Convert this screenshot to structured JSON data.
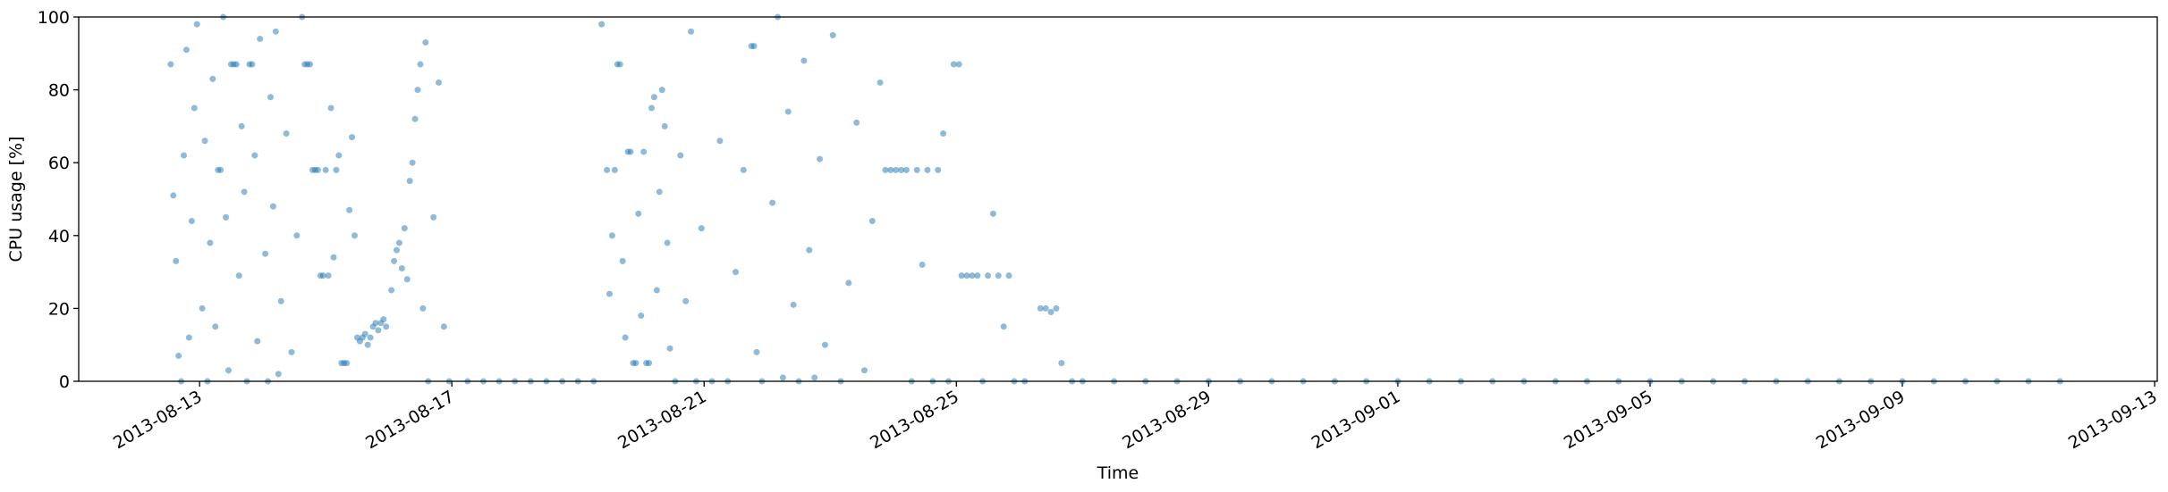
{
  "chart_data": {
    "type": "scatter",
    "x_label": "Time",
    "y_label": "CPU usage [%]",
    "color": "#1f77b4",
    "xlim": [
      "2013-08-11 02:00",
      "2013-09-13 01:00"
    ],
    "xticks": [
      "2013-08-13",
      "2013-08-17",
      "2013-08-21",
      "2013-08-25",
      "2013-08-29",
      "2013-09-01",
      "2013-09-05",
      "2013-09-09",
      "2013-09-13"
    ],
    "ylim": [
      0,
      100
    ],
    "yticks": [
      0,
      20,
      40,
      60,
      80,
      100
    ],
    "x": [
      "2013-08-12 13:00",
      "2013-08-12 14:00",
      "2013-08-12 15:00",
      "2013-08-12 16:00",
      "2013-08-12 17:00",
      "2013-08-12 18:00",
      "2013-08-12 19:00",
      "2013-08-12 20:00",
      "2013-08-12 21:00",
      "2013-08-12 22:00",
      "2013-08-12 23:00",
      "2013-08-13 01:00",
      "2013-08-13 02:00",
      "2013-08-13 03:00",
      "2013-08-13 04:00",
      "2013-08-13 05:00",
      "2013-08-13 06:00",
      "2013-08-13 07:00",
      "2013-08-13 08:00",
      "2013-08-13 09:00",
      "2013-08-13 10:00",
      "2013-08-13 11:00",
      "2013-08-13 12:00",
      "2013-08-13 13:00",
      "2013-08-13 14:00",
      "2013-08-13 15:00",
      "2013-08-13 16:00",
      "2013-08-13 17:00",
      "2013-08-13 18:00",
      "2013-08-13 19:00",
      "2013-08-13 20:00",
      "2013-08-13 21:00",
      "2013-08-13 22:00",
      "2013-08-13 23:00",
      "2013-08-14 01:00",
      "2013-08-14 02:00",
      "2013-08-14 03:00",
      "2013-08-14 04:00",
      "2013-08-14 05:00",
      "2013-08-14 06:00",
      "2013-08-14 07:00",
      "2013-08-14 09:00",
      "2013-08-14 11:00",
      "2013-08-14 13:00",
      "2013-08-14 15:00",
      "2013-08-14 16:00",
      "2013-08-14 17:00",
      "2013-08-14 18:00",
      "2013-08-14 19:00",
      "2013-08-14 20:00",
      "2013-08-14 21:00",
      "2013-08-14 22:00",
      "2013-08-14 23:00",
      "2013-08-15 00:00",
      "2013-08-15 01:00",
      "2013-08-15 02:00",
      "2013-08-15 03:00",
      "2013-08-15 04:00",
      "2013-08-15 05:00",
      "2013-08-15 06:00",
      "2013-08-15 07:00",
      "2013-08-15 08:00",
      "2013-08-15 09:00",
      "2013-08-15 10:00",
      "2013-08-15 11:00",
      "2013-08-15 12:00",
      "2013-08-15 13:00",
      "2013-08-15 14:00",
      "2013-08-15 15:00",
      "2013-08-15 16:00",
      "2013-08-15 17:00",
      "2013-08-15 18:00",
      "2013-08-15 19:00",
      "2013-08-15 20:00",
      "2013-08-15 21:00",
      "2013-08-15 22:00",
      "2013-08-15 23:00",
      "2013-08-16 01:00",
      "2013-08-16 02:00",
      "2013-08-16 03:00",
      "2013-08-16 04:00",
      "2013-08-16 05:00",
      "2013-08-16 06:00",
      "2013-08-16 07:00",
      "2013-08-16 08:00",
      "2013-08-16 09:00",
      "2013-08-16 10:00",
      "2013-08-16 11:00",
      "2013-08-16 12:00",
      "2013-08-16 13:00",
      "2013-08-16 14:00",
      "2013-08-16 15:00",
      "2013-08-16 17:00",
      "2013-08-16 19:00",
      "2013-08-16 21:00",
      "2013-08-16 23:00",
      "2013-08-17 06:00",
      "2013-08-17 12:00",
      "2013-08-17 18:00",
      "2013-08-18 00:00",
      "2013-08-18 06:00",
      "2013-08-18 12:00",
      "2013-08-18 18:00",
      "2013-08-19 00:00",
      "2013-08-19 06:00",
      "2013-08-19 09:00",
      "2013-08-19 11:00",
      "2013-08-19 12:00",
      "2013-08-19 13:00",
      "2013-08-19 14:00",
      "2013-08-19 15:00",
      "2013-08-19 16:00",
      "2013-08-19 17:00",
      "2013-08-19 18:00",
      "2013-08-19 19:00",
      "2013-08-19 20:00",
      "2013-08-19 21:00",
      "2013-08-19 22:00",
      "2013-08-19 23:00",
      "2013-08-20 00:00",
      "2013-08-20 01:00",
      "2013-08-20 02:00",
      "2013-08-20 03:00",
      "2013-08-20 04:00",
      "2013-08-20 05:00",
      "2013-08-20 06:00",
      "2013-08-20 07:00",
      "2013-08-20 08:00",
      "2013-08-20 09:00",
      "2013-08-20 10:00",
      "2013-08-20 11:00",
      "2013-08-20 13:00",
      "2013-08-20 15:00",
      "2013-08-20 17:00",
      "2013-08-20 19:00",
      "2013-08-20 21:00",
      "2013-08-20 23:00",
      "2013-08-21 03:00",
      "2013-08-21 06:00",
      "2013-08-21 09:00",
      "2013-08-21 12:00",
      "2013-08-21 15:00",
      "2013-08-21 18:00",
      "2013-08-21 19:00",
      "2013-08-21 20:00",
      "2013-08-21 22:00",
      "2013-08-22 02:00",
      "2013-08-22 04:00",
      "2013-08-22 06:00",
      "2013-08-22 08:00",
      "2013-08-22 10:00",
      "2013-08-22 12:00",
      "2013-08-22 14:00",
      "2013-08-22 16:00",
      "2013-08-22 18:00",
      "2013-08-22 20:00",
      "2013-08-22 22:00",
      "2013-08-23 01:00",
      "2013-08-23 04:00",
      "2013-08-23 07:00",
      "2013-08-23 10:00",
      "2013-08-23 13:00",
      "2013-08-23 16:00",
      "2013-08-23 19:00",
      "2013-08-23 21:00",
      "2013-08-23 23:00",
      "2013-08-24 01:00",
      "2013-08-24 03:00",
      "2013-08-24 05:00",
      "2013-08-24 07:00",
      "2013-08-24 09:00",
      "2013-08-24 11:00",
      "2013-08-24 13:00",
      "2013-08-24 15:00",
      "2013-08-24 17:00",
      "2013-08-24 19:00",
      "2013-08-24 21:00",
      "2013-08-24 23:00",
      "2013-08-25 01:00",
      "2013-08-25 02:00",
      "2013-08-25 04:00",
      "2013-08-25 06:00",
      "2013-08-25 08:00",
      "2013-08-25 10:00",
      "2013-08-25 12:00",
      "2013-08-25 14:00",
      "2013-08-25 16:00",
      "2013-08-25 18:00",
      "2013-08-25 20:00",
      "2013-08-25 22:00",
      "2013-08-26 02:00",
      "2013-08-26 08:00",
      "2013-08-26 10:00",
      "2013-08-26 12:00",
      "2013-08-26 14:00",
      "2013-08-26 16:00",
      "2013-08-26 20:00",
      "2013-08-27 00:00",
      "2013-08-27 12:00",
      "2013-08-28 00:00",
      "2013-08-28 12:00",
      "2013-08-29 00:00",
      "2013-08-29 12:00",
      "2013-08-30 00:00",
      "2013-08-30 12:00",
      "2013-08-31 00:00",
      "2013-08-31 12:00",
      "2013-09-01 00:00",
      "2013-09-01 12:00",
      "2013-09-02 00:00",
      "2013-09-02 12:00",
      "2013-09-03 00:00",
      "2013-09-03 12:00",
      "2013-09-04 00:00",
      "2013-09-04 12:00",
      "2013-09-05 00:00",
      "2013-09-05 12:00",
      "2013-09-06 00:00",
      "2013-09-06 12:00",
      "2013-09-07 00:00",
      "2013-09-07 12:00",
      "2013-09-08 00:00",
      "2013-09-08 12:00",
      "2013-09-09 00:00",
      "2013-09-09 12:00",
      "2013-09-10 00:00",
      "2013-09-10 12:00",
      "2013-09-11 00:00",
      "2013-09-11 12:00"
    ],
    "values": [
      87,
      51,
      33,
      7,
      0,
      62,
      91,
      12,
      44,
      75,
      98,
      20,
      66,
      0,
      38,
      83,
      15,
      58,
      58,
      100,
      45,
      3,
      87,
      87,
      87,
      29,
      70,
      52,
      0,
      87,
      87,
      62,
      11,
      94,
      35,
      0,
      78,
      48,
      96,
      2,
      22,
      68,
      8,
      40,
      100,
      87,
      87,
      87,
      58,
      58,
      58,
      29,
      29,
      58,
      29,
      75,
      34,
      58,
      62,
      5,
      5,
      5,
      47,
      67,
      40,
      12,
      11,
      12,
      13,
      10,
      12,
      15,
      16,
      14,
      16,
      17,
      15,
      25,
      33,
      36,
      38,
      31,
      42,
      28,
      55,
      60,
      72,
      80,
      87,
      20,
      93,
      0,
      45,
      82,
      15,
      0,
      0,
      0,
      0,
      0,
      0,
      0,
      0,
      0,
      0,
      98,
      58,
      24,
      40,
      58,
      87,
      87,
      33,
      12,
      63,
      63,
      5,
      5,
      46,
      18,
      63,
      5,
      5,
      75,
      78,
      25,
      52,
      80,
      70,
      38,
      9,
      0,
      62,
      22,
      96,
      0,
      42,
      0,
      66,
      0,
      30,
      58,
      92,
      92,
      8,
      0,
      49,
      100,
      1,
      74,
      21,
      0,
      88,
      36,
      1,
      61,
      10,
      95,
      0,
      27,
      71,
      3,
      44,
      82,
      58,
      58,
      58,
      58,
      58,
      0,
      58,
      32,
      58,
      0,
      58,
      68,
      0,
      87,
      87,
      29,
      29,
      29,
      29,
      0,
      29,
      46,
      29,
      15,
      29,
      0,
      0,
      20,
      20,
      19,
      20,
      5,
      0,
      0,
      0,
      0,
      0,
      0,
      0,
      0,
      0,
      0,
      0,
      0,
      0,
      0,
      0,
      0,
      0,
      0,
      0,
      0,
      0,
      0,
      0,
      0,
      0,
      0,
      0,
      0,
      0,
      0,
      0,
      0,
      0
    ]
  }
}
